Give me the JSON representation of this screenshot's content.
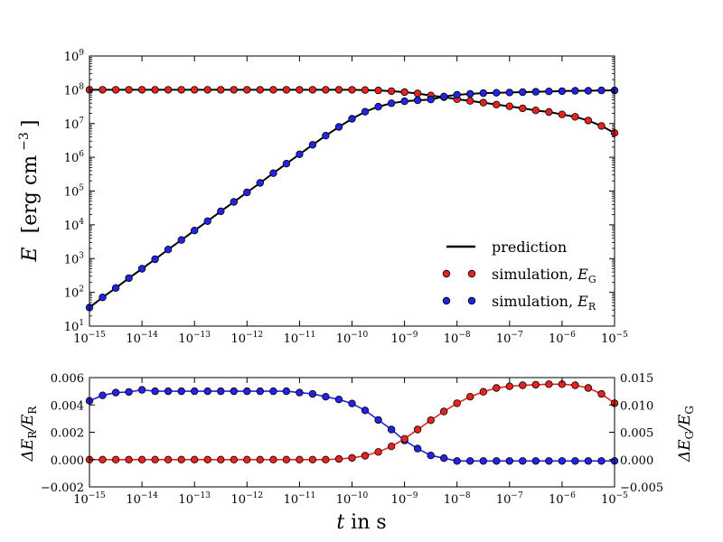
{
  "chart_data": [
    {
      "type": "line",
      "scale": {
        "x": "log",
        "y": "log"
      },
      "xlim": [
        1e-15,
        1e-05
      ],
      "ylim": [
        10,
        1000000000.0
      ],
      "x_tick_exponents": [
        -15,
        -14,
        -13,
        -12,
        -11,
        -10,
        -9,
        -8,
        -7,
        -6,
        -5
      ],
      "y_tick_exponents": [
        1,
        2,
        3,
        4,
        5,
        6,
        7,
        8,
        9
      ],
      "tick_base": "10",
      "ylabel": {
        "symbol": "E",
        "unit": "[erg cm",
        "unit_exp": "−3",
        "unit_close": "]"
      },
      "legend": {
        "position": "lower-right",
        "entries": [
          {
            "label": "prediction"
          },
          {
            "label": "simulation, ",
            "symbol": "E",
            "sub": "G"
          },
          {
            "label": "simulation, ",
            "symbol": "E",
            "sub": "R"
          }
        ]
      },
      "series": [
        {
          "name": "E_G",
          "color": "#e8231f",
          "log10_x": [
            -15.0,
            -14.75,
            -14.5,
            -14.25,
            -14.0,
            -13.75,
            -13.5,
            -13.25,
            -13.0,
            -12.75,
            -12.5,
            -12.25,
            -12.0,
            -11.75,
            -11.5,
            -11.25,
            -11.0,
            -10.75,
            -10.5,
            -10.25,
            -10.0,
            -9.75,
            -9.5,
            -9.25,
            -9.0,
            -8.75,
            -8.5,
            -8.25,
            -8.0,
            -7.75,
            -7.5,
            -7.25,
            -7.0,
            -6.75,
            -6.5,
            -6.25,
            -6.0,
            -5.75,
            -5.5,
            -5.25,
            -5.0
          ],
          "log10_y": [
            8.0,
            8.0,
            8.0,
            8.0,
            8.0,
            8.0,
            8.0,
            8.0,
            8.0,
            8.0,
            8.0,
            8.0,
            8.0,
            8.0,
            8.0,
            8.0,
            8.0,
            8.0,
            8.0,
            8.0,
            8.0,
            7.99,
            7.98,
            7.96,
            7.93,
            7.89,
            7.83,
            7.78,
            7.72,
            7.67,
            7.62,
            7.56,
            7.51,
            7.45,
            7.39,
            7.34,
            7.27,
            7.2,
            7.09,
            6.93,
            6.72
          ]
        },
        {
          "name": "E_R",
          "color": "#2323e6",
          "log10_x": [
            -15.0,
            -14.75,
            -14.5,
            -14.25,
            -14.0,
            -13.75,
            -13.5,
            -13.25,
            -13.0,
            -12.75,
            -12.5,
            -12.25,
            -12.0,
            -11.75,
            -11.5,
            -11.25,
            -11.0,
            -10.75,
            -10.5,
            -10.25,
            -10.0,
            -9.75,
            -9.5,
            -9.25,
            -9.0,
            -8.75,
            -8.5,
            -8.25,
            -8.0,
            -7.75,
            -7.5,
            -7.25,
            -7.0,
            -6.75,
            -6.5,
            -6.25,
            -6.0,
            -5.75,
            -5.5,
            -5.25,
            -5.0
          ],
          "log10_y": [
            1.55,
            1.85,
            2.13,
            2.42,
            2.7,
            2.98,
            3.27,
            3.55,
            3.83,
            4.11,
            4.4,
            4.68,
            4.96,
            5.24,
            5.53,
            5.81,
            6.09,
            6.37,
            6.64,
            6.9,
            7.14,
            7.35,
            7.5,
            7.6,
            7.66,
            7.69,
            7.71,
            7.8,
            7.85,
            7.88,
            7.9,
            7.91,
            7.92,
            7.93,
            7.94,
            7.95,
            7.96,
            7.97,
            7.97,
            7.98,
            7.98
          ]
        }
      ]
    },
    {
      "type": "line",
      "scale": {
        "x": "log",
        "y": "linear"
      },
      "xlim": [
        1e-15,
        1e-05
      ],
      "ylim_left": [
        -0.002,
        0.006
      ],
      "ylim_right": [
        -0.005,
        0.015
      ],
      "x_tick_exponents": [
        -15,
        -14,
        -13,
        -12,
        -11,
        -10,
        -9,
        -8,
        -7,
        -6,
        -5
      ],
      "left_ticks": [
        "−0.002",
        "0.000",
        "0.002",
        "0.004",
        "0.006"
      ],
      "left_tick_values": [
        -0.002,
        0.0,
        0.002,
        0.004,
        0.006
      ],
      "right_ticks": [
        "−0.005",
        "0.000",
        "0.005",
        "0.010",
        "0.015"
      ],
      "right_tick_values": [
        -0.005,
        0.0,
        0.005,
        0.01,
        0.015
      ],
      "ylabel_left": {
        "text": "ΔE",
        "sub": "R",
        "sep": "/E",
        "sub2": "R"
      },
      "ylabel_right": {
        "text": "ΔE",
        "sub": "G",
        "sep": "/E",
        "sub2": "G"
      },
      "xlabel": {
        "symbol": "t",
        "text": " in s"
      },
      "series": [
        {
          "name": "ΔE_R/E_R",
          "axis": "left",
          "color": "#2323e6",
          "log10_x": [
            -15.0,
            -14.75,
            -14.5,
            -14.25,
            -14.0,
            -13.75,
            -13.5,
            -13.25,
            -13.0,
            -12.75,
            -12.5,
            -12.25,
            -12.0,
            -11.75,
            -11.5,
            -11.25,
            -11.0,
            -10.75,
            -10.5,
            -10.25,
            -10.0,
            -9.75,
            -9.5,
            -9.25,
            -9.0,
            -8.75,
            -8.5,
            -8.25,
            -8.0,
            -7.75,
            -7.5,
            -7.25,
            -7.0,
            -6.75,
            -6.5,
            -6.25,
            -6.0,
            -5.75,
            -5.5,
            -5.25,
            -5.0
          ],
          "y": [
            0.0043,
            0.0047,
            0.0049,
            0.00495,
            0.0051,
            0.005,
            0.005,
            0.005,
            0.005,
            0.005,
            0.005,
            0.005,
            0.005,
            0.005,
            0.005,
            0.005,
            0.0049,
            0.0048,
            0.0046,
            0.0044,
            0.0041,
            0.0036,
            0.0029,
            0.0022,
            0.0014,
            0.0008,
            0.0003,
            0.0001,
            -0.0001,
            -0.0001,
            -0.0001,
            -0.0001,
            -0.0001,
            -0.0001,
            -0.0001,
            -0.0001,
            -0.0001,
            -0.0001,
            -0.0001,
            -0.0001,
            -0.0001
          ]
        },
        {
          "name": "ΔE_G/E_G",
          "axis": "right",
          "color": "#e8231f",
          "log10_x": [
            -15.0,
            -14.75,
            -14.5,
            -14.25,
            -14.0,
            -13.75,
            -13.5,
            -13.25,
            -13.0,
            -12.75,
            -12.5,
            -12.25,
            -12.0,
            -11.75,
            -11.5,
            -11.25,
            -11.0,
            -10.75,
            -10.5,
            -10.25,
            -10.0,
            -9.75,
            -9.5,
            -9.25,
            -9.0,
            -8.75,
            -8.5,
            -8.25,
            -8.0,
            -7.75,
            -7.5,
            -7.25,
            -7.0,
            -6.75,
            -6.5,
            -6.25,
            -6.0,
            -5.75,
            -5.5,
            -5.25,
            -5.0
          ],
          "y": [
            0.0,
            0.0,
            0.0,
            0.0,
            0.0,
            0.0,
            0.0,
            0.0,
            0.0,
            0.0,
            0.0,
            0.0,
            0.0,
            0.0,
            0.0,
            0.0,
            0.0,
            0.0,
            0.0,
            0.0001,
            0.0003,
            0.0007,
            0.0014,
            0.0024,
            0.0038,
            0.0055,
            0.0072,
            0.0088,
            0.0103,
            0.0115,
            0.0124,
            0.0131,
            0.0134,
            0.0136,
            0.0137,
            0.0138,
            0.0138,
            0.0136,
            0.0131,
            0.012,
            0.0103
          ]
        }
      ]
    }
  ]
}
